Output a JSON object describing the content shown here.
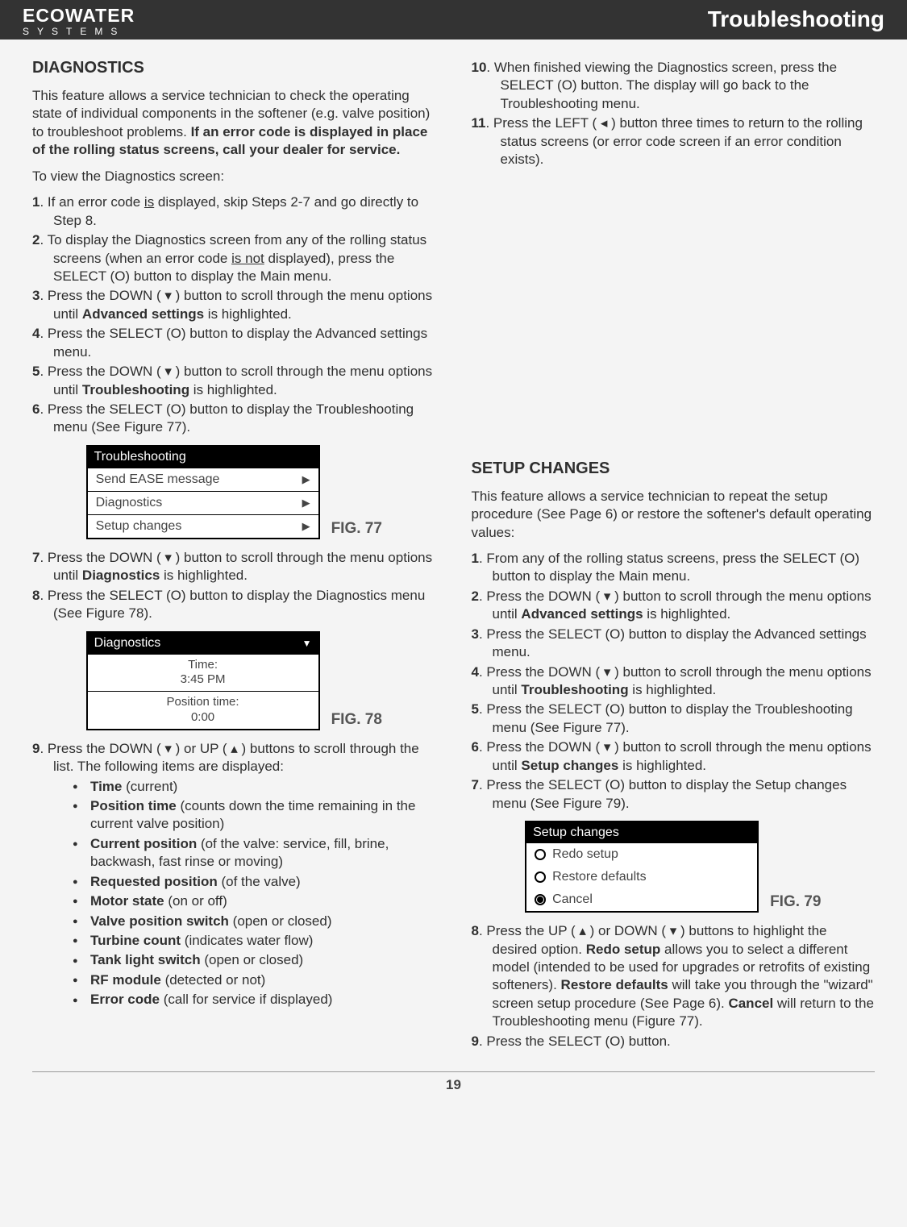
{
  "header": {
    "brand_line1": "ECOWATER",
    "brand_line2": "SYSTEMS",
    "title": "Troubleshooting",
    "bar_bg": "#333333",
    "bar_fg": "#ffffff"
  },
  "page_number": "19",
  "left": {
    "heading": "DIAGNOSTICS",
    "intro_pre": "This feature allows a service technician to check the operating state of individual components in the softener (e.g. valve position) to troubleshoot problems.  ",
    "intro_bold": "If an error code is displayed in place of the rolling status screens, call your dealer for service.",
    "to_view": "To view the Diagnostics screen:",
    "step1_num": "1",
    "step1_a": ". If an error code ",
    "step1_u": "is",
    "step1_b": " displayed, skip Steps 2-7 and go directly to Step 8.",
    "step2_num": "2",
    "step2_a": ". To display the Diagnostics screen from any of the rolling status screens (when an error code ",
    "step2_u": "is not",
    "step2_b": " displayed), press the SELECT (O) button to display the Main menu.",
    "step3_num": "3",
    "step3_a": ". Press the DOWN ( ▾ ) button to scroll through the menu options until ",
    "step3_bold": "Advanced settings",
    "step3_b": " is highlighted.",
    "step4_num": "4",
    "step4": ". Press the SELECT (O) button to display the Advanced settings menu.",
    "step5_num": "5",
    "step5_a": ". Press the DOWN ( ▾ ) button to scroll through the menu options until ",
    "step5_bold": "Troubleshooting",
    "step5_b": " is highlighted.",
    "step6_num": "6",
    "step6": ". Press the SELECT (O) button to display the Troubleshooting menu (See Figure 77).",
    "fig77": {
      "title": "Troubleshooting",
      "row1": "Send EASE message",
      "row2": "Diagnostics",
      "row3": "Setup changes",
      "caption": "FIG. 77"
    },
    "step7_num": "7",
    "step7_a": ". Press the DOWN ( ▾ ) button to scroll through the menu options until ",
    "step7_bold": "Diagnostics",
    "step7_b": " is highlighted.",
    "step8_num": "8",
    "step8": ". Press the SELECT (O) button to display the Diagnostics menu (See Figure 78).",
    "fig78": {
      "title": "Diagnostics",
      "row1a": "Time:",
      "row1b": "3:45 PM",
      "row2a": "Position time:",
      "row2b": "0:00",
      "caption": "FIG. 78"
    },
    "step9_num": "9",
    "step9": ". Press the DOWN ( ▾ ) or UP ( ▴ ) buttons to scroll through the list.  The following items are displayed:",
    "bullets": [
      {
        "b": "Time",
        "rest": " (current)"
      },
      {
        "b": "Position time",
        "rest": " (counts down the time remaining in the current valve position)"
      },
      {
        "b": "Current position",
        "rest": " (of the valve: service, fill, brine, backwash, fast rinse or moving)"
      },
      {
        "b": "Requested position",
        "rest": " (of the valve)"
      },
      {
        "b": "Motor state",
        "rest": " (on or off)"
      },
      {
        "b": "Valve position switch",
        "rest": " (open or closed)"
      },
      {
        "b": "Turbine count",
        "rest": " (indicates water flow)"
      },
      {
        "b": "Tank light switch",
        "rest": " (open or closed)"
      },
      {
        "b": "RF module",
        "rest": " (detected or not)"
      },
      {
        "b": "Error code",
        "rest": " (call for service if displayed)"
      }
    ]
  },
  "right_top": {
    "step10_num": "10",
    "step10": ". When finished viewing the Diagnostics screen, press the SELECT (O) button.  The display will go back to the Troubleshooting menu.",
    "step11_num": "11",
    "step11": ". Press the LEFT ( ◂ ) button three times to return to the rolling status screens (or error code screen if an error condition exists)."
  },
  "right": {
    "heading": "SETUP CHANGES",
    "intro": "This feature allows a service technician to repeat the setup procedure (See Page 6) or restore the softener's default operating values:",
    "step1_num": "1",
    "step1": ". From any of the rolling status screens, press the SELECT (O) button to display the Main menu.",
    "step2_num": "2",
    "step2_a": ". Press the DOWN ( ▾ ) button to scroll through the menu options until ",
    "step2_bold": "Advanced settings",
    "step2_b": " is highlighted.",
    "step3_num": "3",
    "step3": ". Press the SELECT (O) button to display the Advanced settings menu.",
    "step4_num": "4",
    "step4_a": ". Press the DOWN ( ▾ ) button to scroll through the menu options until ",
    "step4_bold": "Troubleshooting",
    "step4_b": " is highlighted.",
    "step5_num": "5",
    "step5": ". Press the SELECT (O) button to display the Troubleshooting menu (See Figure 77).",
    "step6_num": "6",
    "step6_a": ". Press the DOWN ( ▾ ) button to scroll through the menu options until ",
    "step6_bold": "Setup changes",
    "step6_b": " is highlighted.",
    "step7_num": "7",
    "step7": ". Press the SELECT (O) button to display the Setup changes menu (See Figure 79).",
    "fig79": {
      "title": "Setup changes",
      "opt1": "Redo setup",
      "opt2": "Restore defaults",
      "opt3": "Cancel",
      "caption": "FIG. 79"
    },
    "step8_num": "8",
    "step8_a": ". Press the UP ( ▴ ) or DOWN ( ▾ ) buttons to highlight the desired option.  ",
    "step8_b1": "Redo setup",
    "step8_c": " allows you to select a different model (intended to be used for upgrades or retrofits of existing softeners).  ",
    "step8_b2": "Restore defaults",
    "step8_d": " will take you through the \"wizard\" screen setup procedure (See Page 6).  ",
    "step8_b3": "Cancel",
    "step8_e": " will return to the Troubleshooting menu (Figure 77).",
    "step9_num": "9",
    "step9": ". Press the SELECT (O) button."
  }
}
